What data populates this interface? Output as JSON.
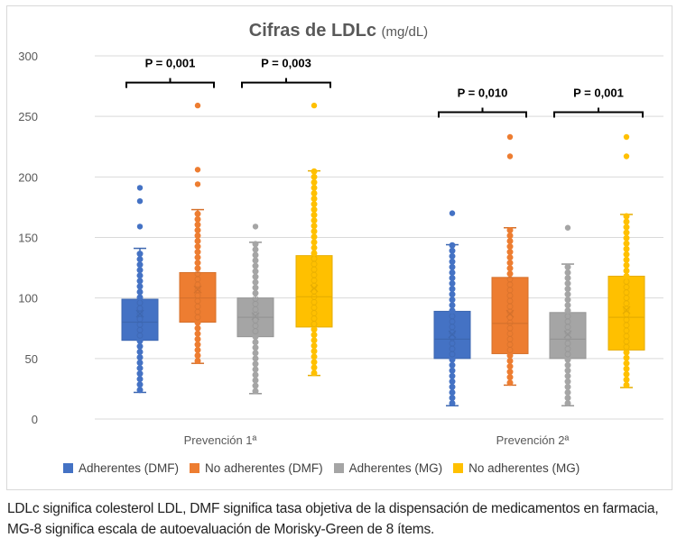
{
  "chart_data": {
    "type": "boxplot",
    "title": "Cifras de LDLc",
    "title_unit": "(mg/dL)",
    "xlabel": "",
    "ylabel": "",
    "ylim": [
      0,
      300
    ],
    "yticks": [
      0,
      50,
      100,
      150,
      200,
      250,
      300
    ],
    "grid": true,
    "legend_position": "bottom",
    "categories": [
      "Prevención 1ª",
      "Prevención 2ª"
    ],
    "series": [
      {
        "name": "Adherentes (DMF)",
        "color": "#4472C4",
        "boxes": [
          {
            "min": 22,
            "q1": 65,
            "median": 80,
            "q3": 99,
            "max": 141,
            "mean": 87,
            "outliers": [
              159,
              180,
              191
            ]
          },
          {
            "min": 11,
            "q1": 50,
            "median": 66,
            "q3": 89,
            "max": 144,
            "mean": 70,
            "outliers": [
              170
            ]
          }
        ]
      },
      {
        "name": "No adherentes (DMF)",
        "color": "#ED7D31",
        "boxes": [
          {
            "min": 46,
            "q1": 80,
            "median": 100,
            "q3": 121,
            "max": 173,
            "mean": 107,
            "outliers": [
              194,
              206,
              259
            ]
          },
          {
            "min": 28,
            "q1": 54,
            "median": 79,
            "q3": 117,
            "max": 158,
            "mean": 87,
            "outliers": [
              217,
              233
            ]
          }
        ]
      },
      {
        "name": "Adherentes (MG)",
        "color": "#A5A5A5",
        "boxes": [
          {
            "min": 21,
            "q1": 68,
            "median": 84,
            "q3": 100,
            "max": 146,
            "mean": 85,
            "outliers": [
              159
            ]
          },
          {
            "min": 11,
            "q1": 50,
            "median": 66,
            "q3": 88,
            "max": 128,
            "mean": 70,
            "outliers": [
              158
            ]
          }
        ]
      },
      {
        "name": "No adherentes (MG)",
        "color": "#FFC000",
        "boxes": [
          {
            "min": 36,
            "q1": 76,
            "median": 101,
            "q3": 135,
            "max": 205,
            "mean": 108,
            "outliers": [
              259
            ]
          },
          {
            "min": 26,
            "q1": 57,
            "median": 84,
            "q3": 118,
            "max": 169,
            "mean": 90,
            "outliers": [
              217,
              233
            ]
          }
        ]
      }
    ],
    "annotations": [
      {
        "text": "P = 0,001",
        "category": 0,
        "series_pair": [
          0,
          1
        ],
        "y": 275
      },
      {
        "text": "P = 0,003",
        "category": 0,
        "series_pair": [
          2,
          3
        ],
        "y": 275
      },
      {
        "text": "P = 0,010",
        "category": 1,
        "series_pair": [
          0,
          1
        ],
        "y": 255
      },
      {
        "text": "P = 0,001",
        "category": 1,
        "series_pair": [
          2,
          3
        ],
        "y": 255
      }
    ]
  },
  "legend": [
    {
      "label": "Adherentes (DMF)",
      "color": "#4472C4"
    },
    {
      "label": "No adherentes (DMF)",
      "color": "#ED7D31"
    },
    {
      "label": "Adherentes (MG)",
      "color": "#A5A5A5"
    },
    {
      "label": "No adherentes (MG)",
      "color": "#FFC000"
    }
  ],
  "caption": "LDLc significa colesterol LDL, DMF significa tasa objetiva de la dispensación de medicamentos en farmacia, MG-8 significa escala de autoevaluación de Morisky-Green de 8 ítems."
}
